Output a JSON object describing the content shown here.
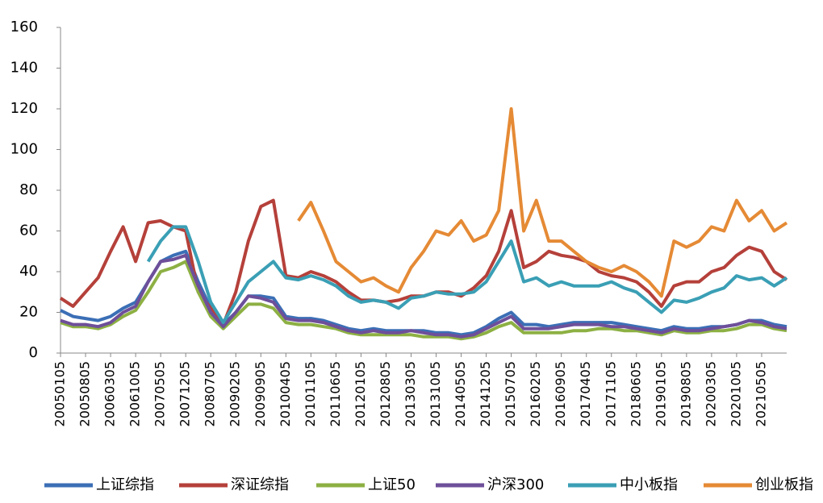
{
  "chart_data": {
    "type": "line",
    "categories": [
      "20050105",
      null,
      "20050805",
      null,
      "20060305",
      null,
      "20061005",
      null,
      "20070505",
      null,
      "20071205",
      null,
      "20080705",
      null,
      "20090205",
      null,
      "20090905",
      null,
      "20100405",
      null,
      "20101105",
      null,
      "20110605",
      null,
      "20120105",
      null,
      "20120805",
      null,
      "20130305",
      null,
      "20131005",
      null,
      "20140505",
      null,
      "20141205",
      null,
      "20150705",
      null,
      "20160205",
      null,
      "20160905",
      null,
      "20170405",
      null,
      "20171105",
      null,
      "20180605",
      null,
      "20190105",
      null,
      "20190805",
      null,
      "20200305",
      null,
      "20201005",
      null,
      "20210505",
      null,
      null
    ],
    "series": [
      {
        "name": "上证综指",
        "color": "#3b6fb6",
        "values": [
          21,
          18,
          17,
          16,
          18,
          22,
          25,
          35,
          45,
          48,
          50,
          35,
          22,
          14,
          20,
          28,
          28,
          27,
          18,
          17,
          17,
          16,
          14,
          12,
          11,
          12,
          11,
          11,
          11,
          11,
          10,
          10,
          9,
          10,
          13,
          17,
          20,
          14,
          14,
          13,
          14,
          15,
          15,
          15,
          15,
          14,
          13,
          12,
          11,
          13,
          12,
          12,
          13,
          13,
          14,
          16,
          16,
          14,
          13
        ]
      },
      {
        "name": "深证综指",
        "color": "#b5403a",
        "values": [
          27,
          23,
          30,
          37,
          50,
          62,
          45,
          64,
          65,
          62,
          60,
          30,
          22,
          14,
          30,
          55,
          72,
          75,
          38,
          37,
          40,
          38,
          35,
          30,
          26,
          26,
          25,
          26,
          28,
          28,
          30,
          30,
          28,
          32,
          38,
          50,
          70,
          42,
          45,
          50,
          48,
          47,
          45,
          40,
          38,
          37,
          35,
          30,
          23,
          33,
          35,
          35,
          40,
          42,
          48,
          52,
          50,
          40,
          36
        ]
      },
      {
        "name": "上证50",
        "color": "#8db043",
        "values": [
          15,
          13,
          13,
          12,
          14,
          18,
          21,
          30,
          40,
          42,
          45,
          30,
          18,
          12,
          18,
          24,
          24,
          22,
          15,
          14,
          14,
          13,
          12,
          10,
          9,
          9,
          9,
          9,
          9,
          8,
          8,
          8,
          7,
          8,
          10,
          13,
          15,
          10,
          10,
          10,
          10,
          11,
          11,
          12,
          12,
          11,
          11,
          10,
          9,
          11,
          10,
          10,
          11,
          11,
          12,
          14,
          14,
          12,
          11
        ]
      },
      {
        "name": "沪深300",
        "color": "#6e4f9a",
        "values": [
          16,
          14,
          14,
          13,
          15,
          20,
          23,
          35,
          45,
          46,
          48,
          33,
          20,
          13,
          20,
          28,
          27,
          25,
          17,
          16,
          16,
          15,
          13,
          11,
          10,
          11,
          10,
          10,
          11,
          10,
          9,
          9,
          8,
          9,
          12,
          15,
          18,
          12,
          12,
          12,
          13,
          14,
          14,
          14,
          13,
          13,
          12,
          11,
          10,
          12,
          11,
          11,
          12,
          13,
          14,
          16,
          15,
          13,
          12
        ]
      },
      {
        "name": "中小板指",
        "color": "#3a9fb5",
        "values": [
          null,
          null,
          null,
          null,
          null,
          null,
          null,
          45,
          55,
          62,
          62,
          45,
          25,
          15,
          25,
          35,
          40,
          45,
          37,
          36,
          38,
          36,
          33,
          28,
          25,
          26,
          25,
          22,
          27,
          28,
          30,
          29,
          29,
          30,
          35,
          45,
          55,
          35,
          37,
          33,
          35,
          33,
          33,
          33,
          35,
          32,
          30,
          25,
          20,
          26,
          25,
          27,
          30,
          32,
          38,
          36,
          37,
          33,
          37
        ]
      },
      {
        "name": "创业板指",
        "color": "#e58a35",
        "values": [
          null,
          null,
          null,
          null,
          null,
          null,
          null,
          null,
          null,
          null,
          null,
          null,
          null,
          null,
          null,
          null,
          null,
          null,
          null,
          65,
          74,
          60,
          45,
          40,
          35,
          37,
          33,
          30,
          42,
          50,
          60,
          58,
          65,
          55,
          58,
          70,
          120,
          60,
          75,
          55,
          55,
          50,
          45,
          42,
          40,
          43,
          40,
          35,
          28,
          55,
          52,
          55,
          62,
          60,
          75,
          65,
          70,
          60,
          64
        ]
      }
    ],
    "ylim": [
      0,
      160
    ],
    "yticks": [
      0,
      20,
      40,
      60,
      80,
      100,
      120,
      140,
      160
    ],
    "legend": "bottom"
  }
}
